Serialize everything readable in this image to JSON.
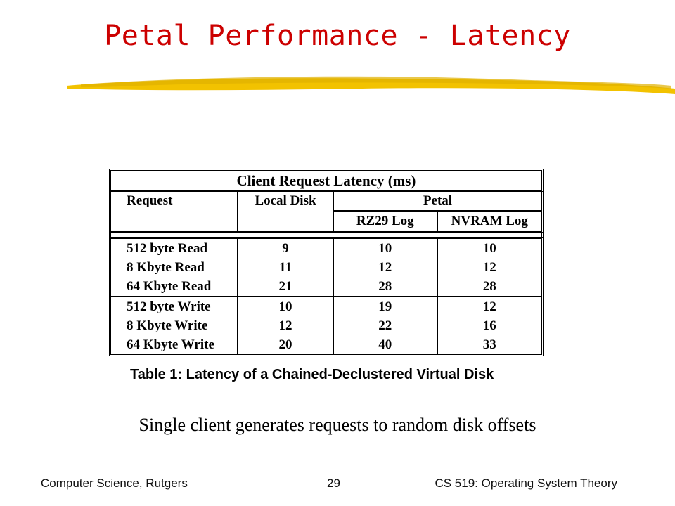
{
  "slide": {
    "title": "Petal Performance - Latency",
    "note": "Single client generates requests to random disk offsets"
  },
  "table": {
    "title": "Client Request Latency (ms)",
    "headers": {
      "request": "Request",
      "local_disk": "Local Disk",
      "petal": "Petal",
      "rz29": "RZ29 Log",
      "nvram": "NVRAM Log"
    },
    "rows": [
      {
        "request": "512 byte Read",
        "local": "9",
        "rz29": "10",
        "nvram": "10"
      },
      {
        "request": "8 Kbyte Read",
        "local": "11",
        "rz29": "12",
        "nvram": "12"
      },
      {
        "request": "64 Kbyte Read",
        "local": "21",
        "rz29": "28",
        "nvram": "28"
      },
      {
        "request": "512 byte Write",
        "local": "10",
        "rz29": "19",
        "nvram": "12"
      },
      {
        "request": "8 Kbyte Write",
        "local": "12",
        "rz29": "22",
        "nvram": "16"
      },
      {
        "request": "64 Kbyte Write",
        "local": "20",
        "rz29": "40",
        "nvram": "33"
      }
    ],
    "caption": "Table 1: Latency of a Chained-Declustered Virtual Disk"
  },
  "footer": {
    "left": "Computer Science, Rutgers",
    "page": "29",
    "right": "CS 519: Operating System Theory"
  },
  "colors": {
    "title": "#cc0000",
    "brush": "#f2c200"
  }
}
